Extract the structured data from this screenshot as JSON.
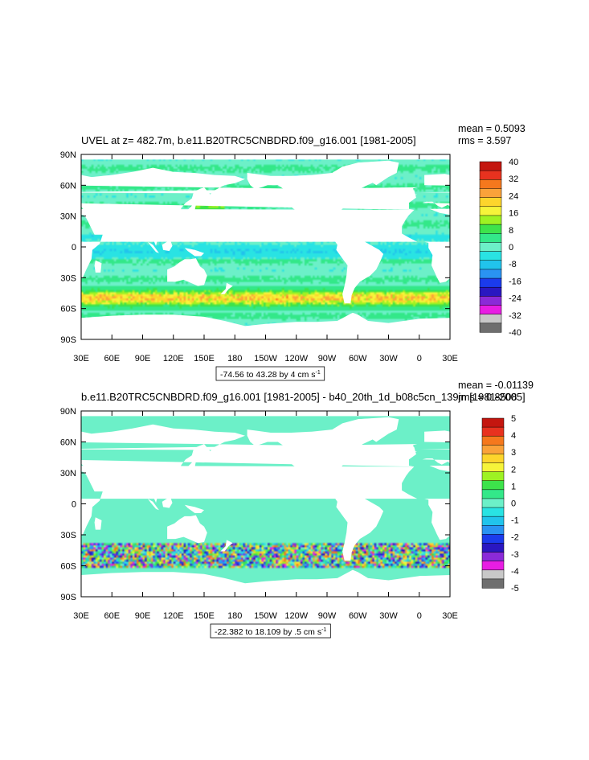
{
  "chart_data": [
    {
      "type": "heatmap",
      "title": "UVEL at z= 482.7m, b.e11.B20TRC5CNBDRD.f09_g16.001 [1981-2005]",
      "stats": [
        "mean = 0.5093",
        "rms = 3.597"
      ],
      "xticks": [
        "30E",
        "60E",
        "90E",
        "120E",
        "150E",
        "180",
        "150W",
        "120W",
        "90W",
        "60W",
        "30W",
        "0",
        "30E"
      ],
      "yticks": [
        "90N",
        "60N",
        "30N",
        "0",
        "30S",
        "60S",
        "90S"
      ],
      "xlim": [
        30,
        390
      ],
      "ylim": [
        -90,
        90
      ],
      "colorbar_labels": [
        "40",
        "32",
        "24",
        "16",
        "8",
        "0",
        "-8",
        "-16",
        "-24",
        "-32",
        "-40"
      ],
      "colors": [
        "#c4160f",
        "#e8321f",
        "#f5781d",
        "#faa23a",
        "#fdd52c",
        "#f6f43a",
        "#9ef223",
        "#3de34b",
        "#33e889",
        "#6cf0c8",
        "#29e3e3",
        "#21c4ec",
        "#2a93f2",
        "#1b3bec",
        "#2a17c1",
        "#8b2ad8",
        "#e81de3",
        "#c8c8c8",
        "#6e6e6e"
      ],
      "range_note": {
        "prefix": "-74.56 to 43.28 by 4 cm s",
        "sup": "-1"
      }
    },
    {
      "type": "heatmap",
      "title": "b.e11.B20TRC5CNBDRD.f09_g16.001 [1981-2005] - b40_20th_1d_b08c5cn_139jn [1981-2005]",
      "stats": [
        "mean = -0.01139",
        "rms = 0.8508"
      ],
      "xticks": [
        "30E",
        "60E",
        "90E",
        "120E",
        "150E",
        "180",
        "150W",
        "120W",
        "90W",
        "60W",
        "30W",
        "0",
        "30E"
      ],
      "yticks": [
        "90N",
        "60N",
        "30N",
        "0",
        "30S",
        "60S",
        "90S"
      ],
      "xlim": [
        30,
        390
      ],
      "ylim": [
        -90,
        90
      ],
      "colorbar_labels": [
        "5",
        "4",
        "3",
        "2",
        "1",
        "0",
        "-1",
        "-2",
        "-3",
        "-4",
        "-5"
      ],
      "colors": [
        "#c4160f",
        "#e8321f",
        "#f5781d",
        "#faa23a",
        "#fdd52c",
        "#f6f43a",
        "#9ef223",
        "#3de34b",
        "#33e889",
        "#6cf0c8",
        "#29e3e3",
        "#21c4ec",
        "#2a93f2",
        "#1b3bec",
        "#2a17c1",
        "#8b2ad8",
        "#e81de3",
        "#c8c8c8",
        "#6e6e6e"
      ],
      "range_note": {
        "prefix": "-22.382 to 18.109 by .5 cm s",
        "sup": "-1"
      }
    }
  ]
}
